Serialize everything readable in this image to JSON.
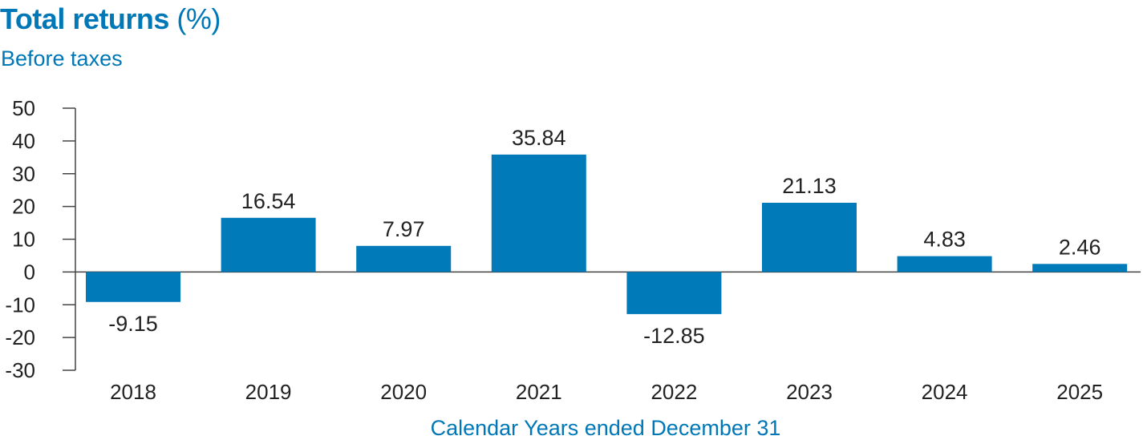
{
  "header": {
    "title_bold": "Total returns",
    "title_light": "(%)",
    "subtitle": "Before taxes"
  },
  "chart_data": {
    "type": "bar",
    "title": "Total returns (%)",
    "subtitle": "Before taxes",
    "xlabel": "Calendar Years ended December 31",
    "ylabel": "",
    "categories": [
      "2018",
      "2019",
      "2020",
      "2021",
      "2022",
      "2023",
      "2024",
      "2025"
    ],
    "values": [
      -9.15,
      16.54,
      7.97,
      35.84,
      -12.85,
      21.13,
      4.83,
      2.46
    ],
    "data_labels": [
      "-9.15",
      "16.54",
      "7.97",
      "35.84",
      "-12.85",
      "21.13",
      "4.83",
      "2.46"
    ],
    "ylim": [
      -30,
      50
    ],
    "yticks": [
      50,
      40,
      30,
      20,
      10,
      0,
      -10,
      -20,
      -30
    ],
    "ytick_labels": [
      "50",
      "40",
      "30",
      "20",
      "10",
      "0",
      "-10",
      "-20",
      "-30"
    ],
    "grid": false,
    "legend": "none",
    "bar_color": "#007ab9"
  }
}
